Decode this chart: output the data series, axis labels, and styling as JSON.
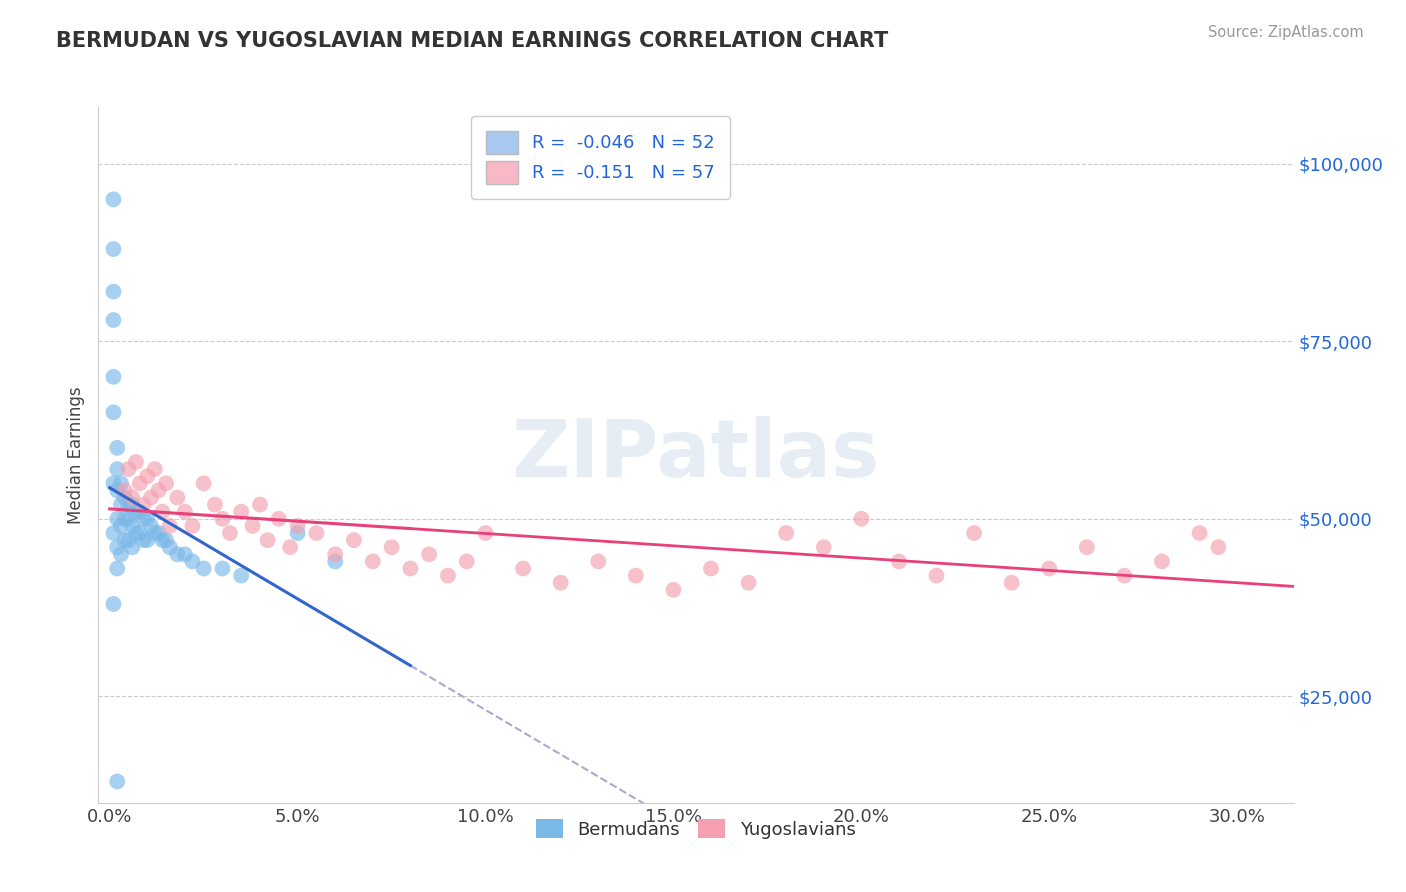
{
  "title": "BERMUDAN VS YUGOSLAVIAN MEDIAN EARNINGS CORRELATION CHART",
  "source": "Source: ZipAtlas.com",
  "xlabel_ticks": [
    "0.0%",
    "5.0%",
    "10.0%",
    "15.0%",
    "20.0%",
    "25.0%",
    "30.0%"
  ],
  "xlabel_vals": [
    0.0,
    0.05,
    0.1,
    0.15,
    0.2,
    0.25,
    0.3
  ],
  "ylabel": "Median Earnings",
  "ylabel_ticks": [
    "$25,000",
    "$50,000",
    "$75,000",
    "$100,000"
  ],
  "ylabel_vals": [
    25000,
    50000,
    75000,
    100000
  ],
  "ymin": 10000,
  "ymax": 108000,
  "xmin": -0.003,
  "xmax": 0.315,
  "watermark_text": "ZIPatlas",
  "blue_color": "#7ab8e8",
  "pink_color": "#f4a0b0",
  "trend_blue": "#3366cc",
  "trend_pink": "#e8407a",
  "trend_dash_color": "#aaaacc",
  "grid_color": "#cccccc",
  "title_color": "#333333",
  "axis_label_color": "#2266dd",
  "bermudans_x": [
    0.001,
    0.001,
    0.001,
    0.001,
    0.001,
    0.001,
    0.001,
    0.001,
    0.002,
    0.002,
    0.002,
    0.002,
    0.002,
    0.002,
    0.003,
    0.003,
    0.003,
    0.003,
    0.004,
    0.004,
    0.004,
    0.005,
    0.005,
    0.005,
    0.006,
    0.006,
    0.006,
    0.007,
    0.007,
    0.008,
    0.008,
    0.009,
    0.009,
    0.01,
    0.01,
    0.011,
    0.012,
    0.013,
    0.014,
    0.015,
    0.016,
    0.018,
    0.02,
    0.022,
    0.025,
    0.03,
    0.035,
    0.05,
    0.06,
    0.001,
    0.002
  ],
  "bermudans_y": [
    95000,
    88000,
    82000,
    78000,
    70000,
    65000,
    55000,
    48000,
    60000,
    57000,
    54000,
    50000,
    46000,
    43000,
    55000,
    52000,
    49000,
    45000,
    53000,
    50000,
    47000,
    52000,
    50000,
    47000,
    52000,
    49000,
    46000,
    51000,
    48000,
    51000,
    48000,
    50000,
    47000,
    50000,
    47000,
    49000,
    48000,
    48000,
    47000,
    47000,
    46000,
    45000,
    45000,
    44000,
    43000,
    43000,
    42000,
    48000,
    44000,
    38000,
    13000
  ],
  "yugoslavians_x": [
    0.004,
    0.005,
    0.006,
    0.007,
    0.008,
    0.009,
    0.01,
    0.011,
    0.012,
    0.013,
    0.014,
    0.015,
    0.016,
    0.018,
    0.02,
    0.022,
    0.025,
    0.028,
    0.03,
    0.032,
    0.035,
    0.038,
    0.04,
    0.042,
    0.045,
    0.048,
    0.05,
    0.055,
    0.06,
    0.065,
    0.07,
    0.075,
    0.08,
    0.085,
    0.09,
    0.095,
    0.1,
    0.11,
    0.12,
    0.13,
    0.14,
    0.15,
    0.16,
    0.17,
    0.18,
    0.19,
    0.2,
    0.21,
    0.22,
    0.23,
    0.24,
    0.25,
    0.26,
    0.27,
    0.28,
    0.29,
    0.295
  ],
  "yugoslavians_y": [
    54000,
    57000,
    53000,
    58000,
    55000,
    52000,
    56000,
    53000,
    57000,
    54000,
    51000,
    55000,
    49000,
    53000,
    51000,
    49000,
    55000,
    52000,
    50000,
    48000,
    51000,
    49000,
    52000,
    47000,
    50000,
    46000,
    49000,
    48000,
    45000,
    47000,
    44000,
    46000,
    43000,
    45000,
    42000,
    44000,
    48000,
    43000,
    41000,
    44000,
    42000,
    40000,
    43000,
    41000,
    48000,
    46000,
    50000,
    44000,
    42000,
    48000,
    41000,
    43000,
    46000,
    42000,
    44000,
    48000,
    46000
  ]
}
